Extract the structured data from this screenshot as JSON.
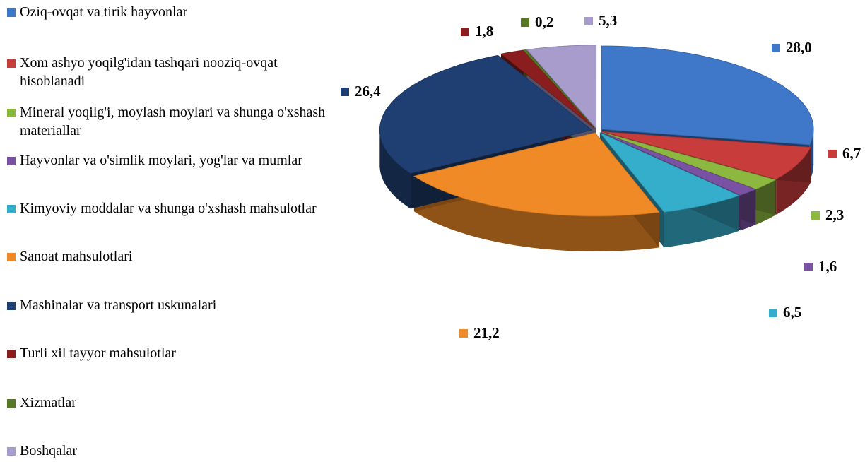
{
  "chart_data": {
    "type": "pie",
    "categories": [
      "Oziq-ovqat va tirik hayvonlar",
      "Xom ashyo yoqilg'idan tashqari nooziq-ovqat hisoblanadi",
      "Mineral yoqilg'i, moylash moylari va shunga o'xshash materiallar",
      "Hayvonlar va o'simlik moylari, yog'lar va mumlar",
      "Kimyoviy moddalar va shunga o'xshash mahsulotlar",
      "Sanoat mahsulotlari",
      "Mashinalar va transport uskunalari",
      "Turli xil tayyor mahsulotlar",
      "Xizmatlar",
      "Boshqalar"
    ],
    "values": [
      28.0,
      6.7,
      2.3,
      1.6,
      6.5,
      21.2,
      26.4,
      1.8,
      0.2,
      5.3
    ],
    "value_labels": [
      "28,0",
      "6,7",
      "2,3",
      "1,6",
      "6,5",
      "21,2",
      "26,4",
      "1,8",
      "0,2",
      "5,3"
    ],
    "colors": [
      "#3f78c8",
      "#c83c3c",
      "#8cb840",
      "#7a52a3",
      "#35aecb",
      "#f08a26",
      "#1f3f72",
      "#8a1e1e",
      "#587a25",
      "#a79ccb"
    ],
    "legend": "left"
  }
}
